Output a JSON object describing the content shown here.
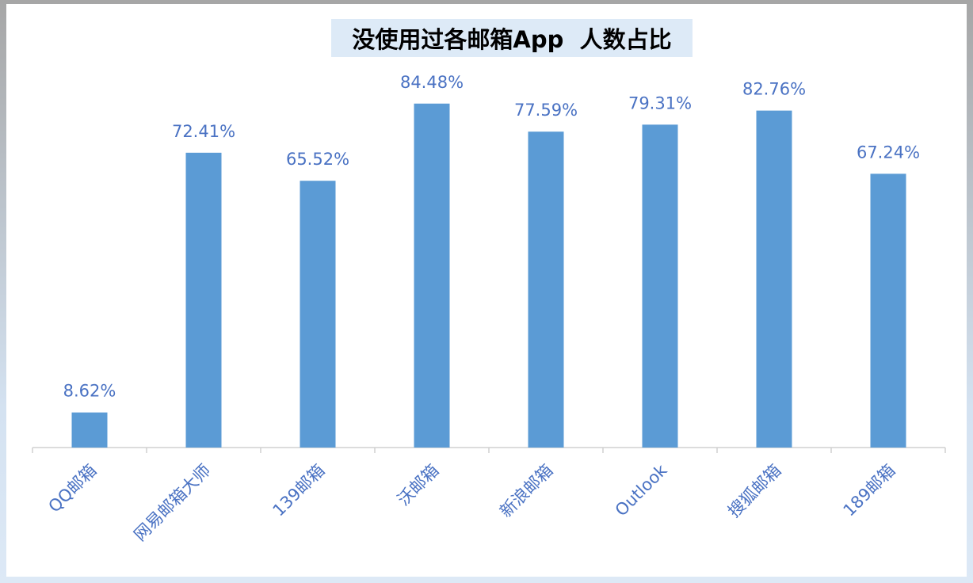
{
  "chart_data": {
    "type": "bar",
    "title": "没使用过各邮箱App  人数占比",
    "categories": [
      "QQ邮箱",
      "网易邮箱大师",
      "139邮箱",
      "沃邮箱",
      "新浪邮箱",
      "Outlook",
      "搜狐邮箱",
      "189邮箱"
    ],
    "values": [
      8.62,
      72.41,
      65.52,
      84.48,
      77.59,
      79.31,
      82.76,
      67.24
    ],
    "value_labels": [
      "8.62%",
      "72.41%",
      "65.52%",
      "84.48%",
      "77.59%",
      "79.31%",
      "82.76%",
      "67.24%"
    ],
    "xlabel": "",
    "ylabel": "",
    "ylim": [
      0,
      100
    ],
    "grid": false,
    "legend": "none",
    "bar_color": "#5b9bd5",
    "label_color": "#4a72c3"
  }
}
